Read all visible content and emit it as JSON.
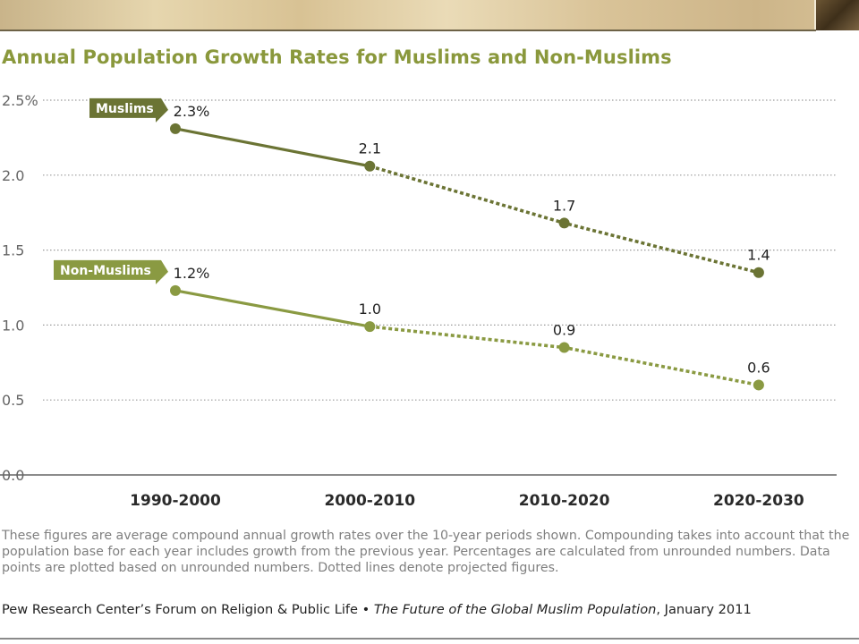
{
  "title": "Annual Population Growth Rates for Muslims and Non-Muslims",
  "note": "These figures are average compound annual growth rates over the 10-year periods shown. Compounding takes into account that the population base for each year includes growth from the previous year. Percentages are calculated from unrounded numbers. Data points are plotted based on unrounded numbers. Dotted lines denote projected figures.",
  "source": {
    "org": "Pew Research Center’s Forum on Religion & Public Life • ",
    "report": "The Future of the Global Muslim Population",
    "date": ", January 2011"
  },
  "chart_data": {
    "type": "line",
    "categories": [
      "1990-2000",
      "2000-2010",
      "2010-2020",
      "2020-2030"
    ],
    "y_ticks": [
      "0.0",
      "0.5",
      "1.0",
      "1.5",
      "2.0",
      "2.5%"
    ],
    "ylim": [
      0,
      2.5
    ],
    "grid": true,
    "projected_from_index": 1,
    "series": [
      {
        "name": "Muslims",
        "values": [
          2.31,
          2.06,
          1.68,
          1.35
        ],
        "labels": [
          "2.3%",
          "2.1",
          "1.7",
          "1.4"
        ],
        "color": "#6b7434"
      },
      {
        "name": "Non-Muslims",
        "values": [
          1.23,
          0.99,
          0.85,
          0.6
        ],
        "labels": [
          "1.2%",
          "1.0",
          "0.9",
          "0.6"
        ],
        "color": "#8a9a42"
      }
    ]
  }
}
